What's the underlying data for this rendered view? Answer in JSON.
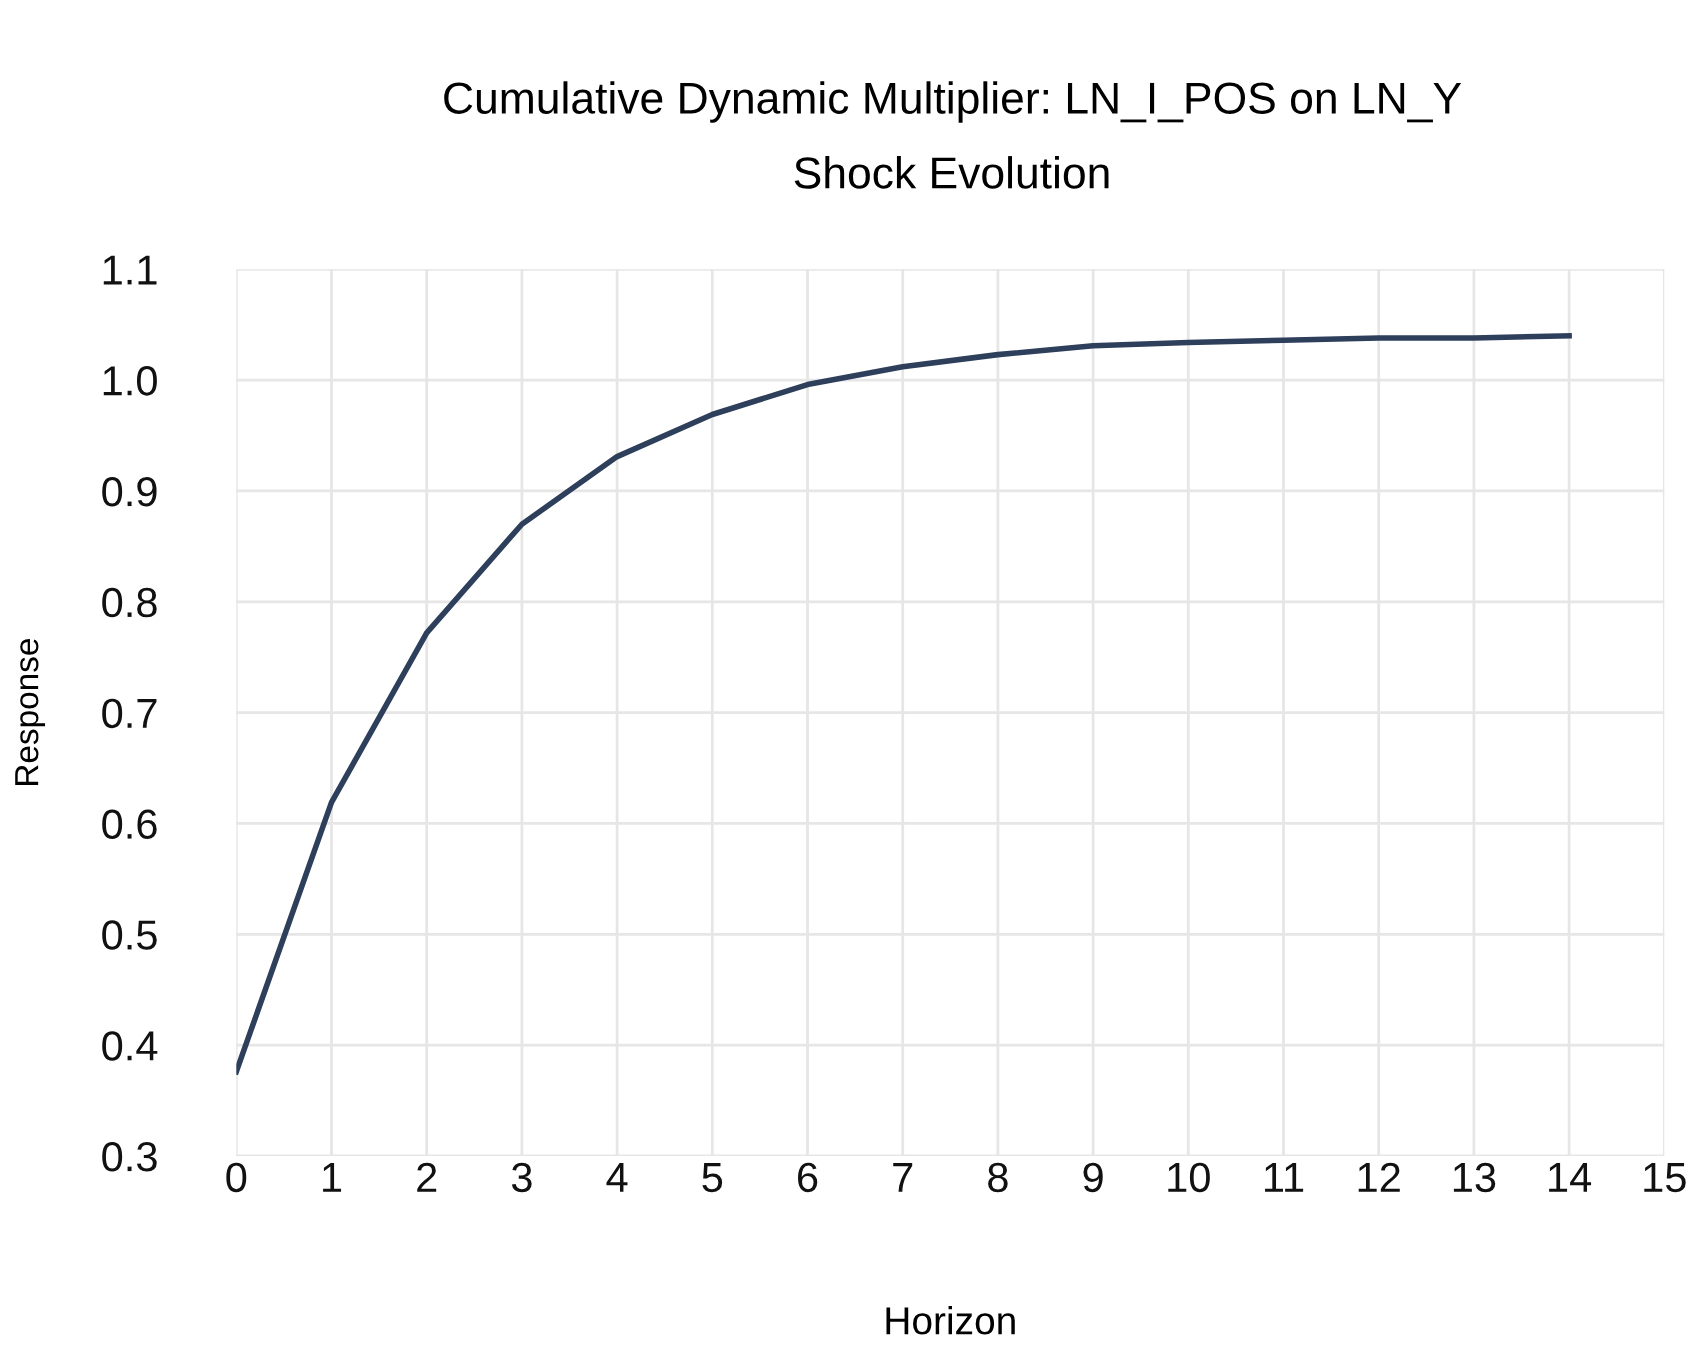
{
  "chart_data": {
    "type": "line",
    "title": "Cumulative Dynamic Multiplier: LN_I_POS on LN_Y",
    "subtitle": "Shock Evolution",
    "xlabel": "Horizon",
    "ylabel": "Response",
    "x": [
      0,
      1,
      2,
      3,
      4,
      5,
      6,
      7,
      8,
      9,
      10,
      11,
      12,
      13,
      14
    ],
    "series": [
      {
        "color": "#2e3f5c",
        "values": [
          0.376,
          0.619,
          0.772,
          0.87,
          0.931,
          0.969,
          0.996,
          1.012,
          1.023,
          1.031,
          1.034,
          1.036,
          1.038,
          1.038,
          1.04
        ]
      }
    ],
    "xlim": [
      0,
      15
    ],
    "xticks": [
      0,
      1,
      2,
      3,
      4,
      5,
      6,
      7,
      8,
      9,
      10,
      11,
      12,
      13,
      14,
      15
    ],
    "ylim": [
      0.3,
      1.1
    ],
    "yticks": [
      {
        "value": 0.3,
        "label": "0.3"
      },
      {
        "value": 0.4,
        "label": "0.4"
      },
      {
        "value": 0.5,
        "label": "0.5"
      },
      {
        "value": 0.6,
        "label": "0.6"
      },
      {
        "value": 0.7,
        "label": "0.7"
      },
      {
        "value": 0.8,
        "label": "0.8"
      },
      {
        "value": 0.9,
        "label": "0.9"
      },
      {
        "value": 1.0,
        "label": "1.0"
      },
      {
        "value": 1.1,
        "label": "1.1"
      }
    ],
    "grid": true,
    "legend": false
  }
}
